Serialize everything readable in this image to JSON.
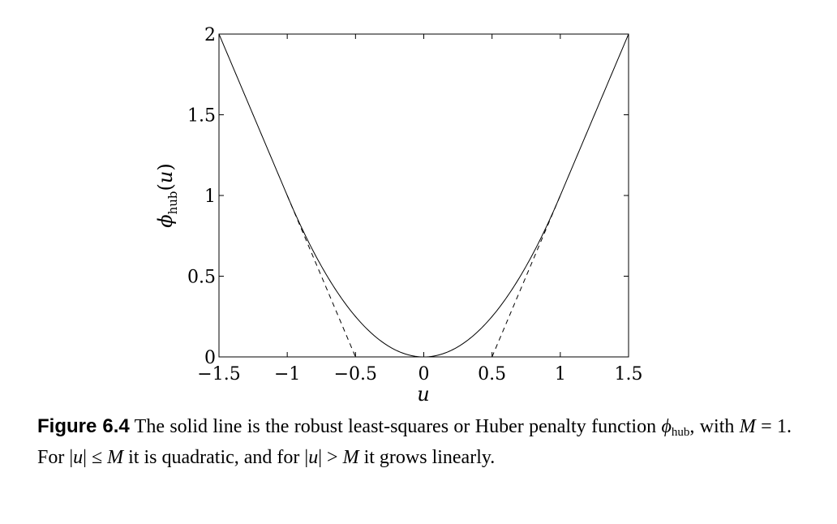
{
  "chart_data": {
    "type": "line",
    "xlabel": "u",
    "ylabel": "ϕhub(u)",
    "xlim": [
      -1.5,
      1.5
    ],
    "ylim": [
      0,
      2
    ],
    "xticks": [
      "−1.5",
      "−1",
      "−0.5",
      "0",
      "0.5",
      "1",
      "1.5"
    ],
    "xtick_values": [
      -1.5,
      -1,
      -0.5,
      0,
      0.5,
      1,
      1.5
    ],
    "yticks": [
      "0",
      "0.5",
      "1",
      "1.5",
      "2"
    ],
    "ytick_values": [
      0,
      0.5,
      1,
      1.5,
      2
    ],
    "grid": false,
    "series": [
      {
        "style": "solid",
        "x": [
          -1.5,
          -1.25,
          -1.0,
          -0.75,
          -0.5,
          -0.25,
          0,
          0.25,
          0.5,
          0.75,
          1.0,
          1.25,
          1.5
        ],
        "y": [
          2.0,
          1.5,
          1.0,
          0.5625,
          0.25,
          0.0625,
          0,
          0.0625,
          0.25,
          0.5625,
          1.0,
          1.5,
          2.0
        ]
      },
      {
        "style": "dashed",
        "x": [
          -1.0,
          -0.5
        ],
        "y": [
          1.0,
          0
        ]
      },
      {
        "style": "dashed",
        "x": [
          0.5,
          1.0
        ],
        "y": [
          0,
          1.0
        ]
      }
    ]
  },
  "caption": {
    "figure_number": "Figure 6.4",
    "line1": " The solid line is the robust least-squares or Huber penalty function ",
    "phi": "ϕ",
    "phi_sub": "hub",
    "line2": ", with ",
    "m_var": "M",
    "line3": " = 1.  For |",
    "u_var1": "u",
    "line4": "| ≤ ",
    "m_var2": "M",
    "line5": " it is quadratic, and for |",
    "u_var2": "u",
    "line6": "| > ",
    "m_var3": "M",
    "line7": " it grows linearly."
  }
}
